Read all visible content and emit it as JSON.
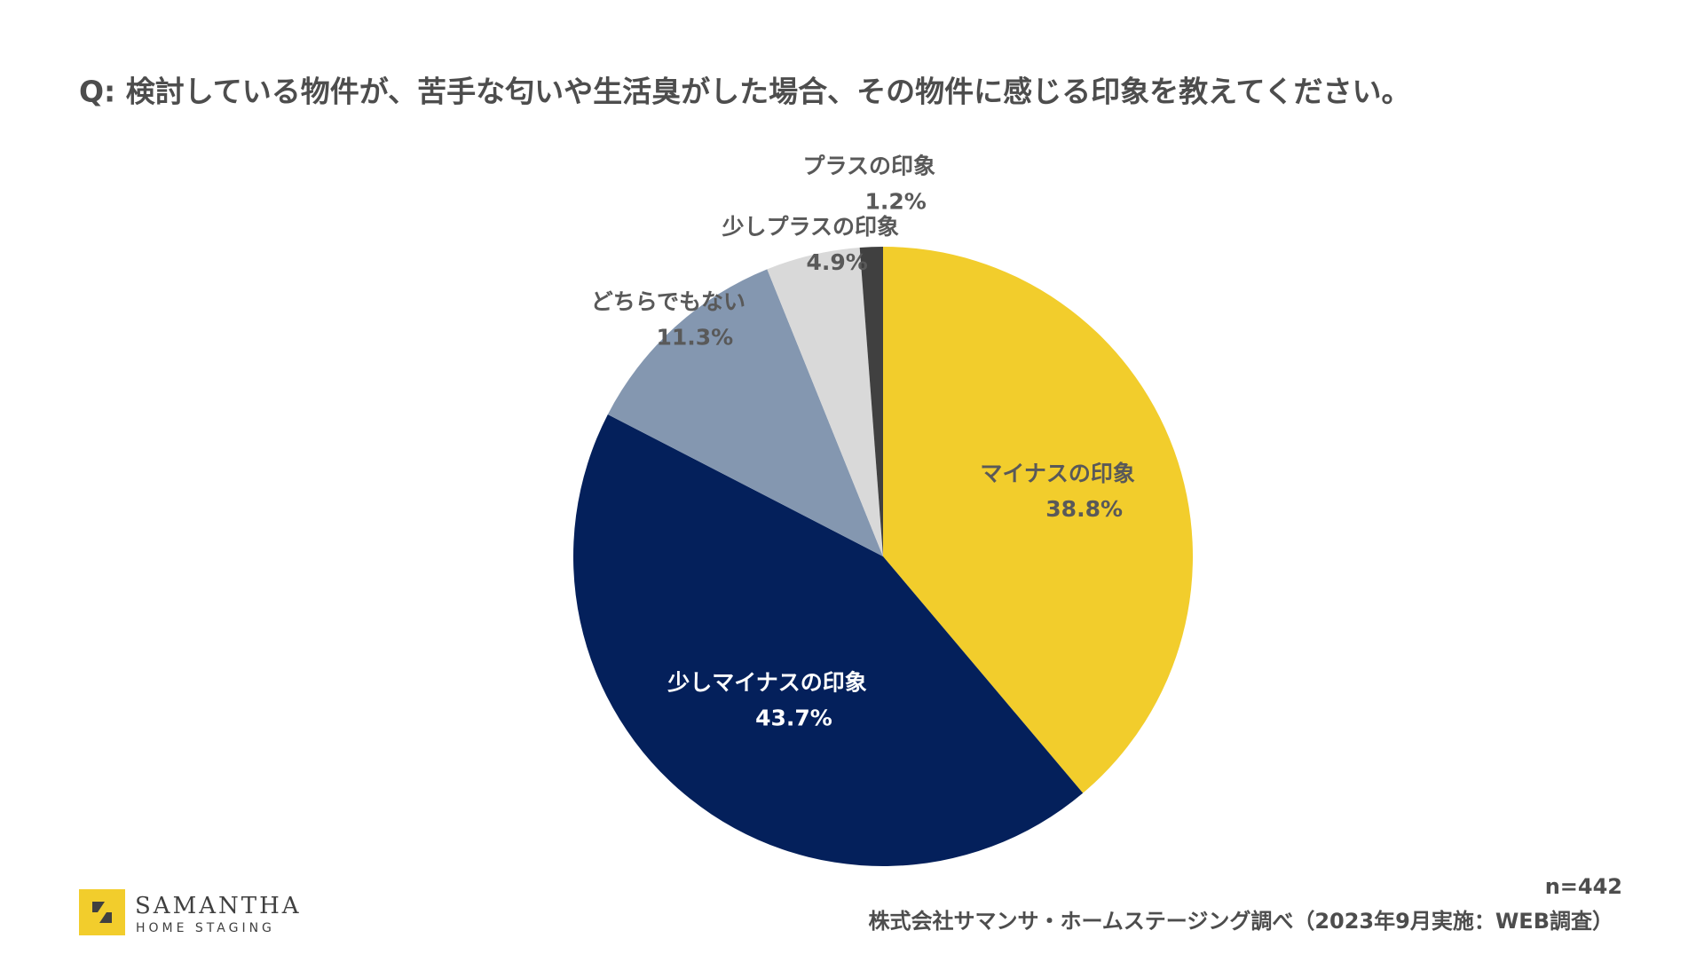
{
  "chart_data": {
    "type": "pie",
    "title": "Q: 検討している物件が、苦手な匂いや生活臭がした場合、その物件に感じる印象を教えてください。",
    "categories": [
      "マイナスの印象",
      "少しマイナスの印象",
      "どちらでもない",
      "少しプラスの印象",
      "プラスの印象"
    ],
    "values": [
      38.8,
      43.7,
      11.3,
      4.9,
      1.2
    ],
    "value_labels": [
      "38.8%",
      "43.7%",
      "11.3%",
      "4.9%",
      "1.2%"
    ],
    "colors": [
      "#f2cd2c",
      "#04205b",
      "#8497b0",
      "#d9d9d9",
      "#404040"
    ],
    "sample_size": "n=442",
    "source": "株式会社サマンサ・ホームステージング調べ（2023年9月実施：WEB調査）"
  },
  "logo": {
    "name": "SAMANTHA",
    "tagline": "HOME STAGING"
  }
}
